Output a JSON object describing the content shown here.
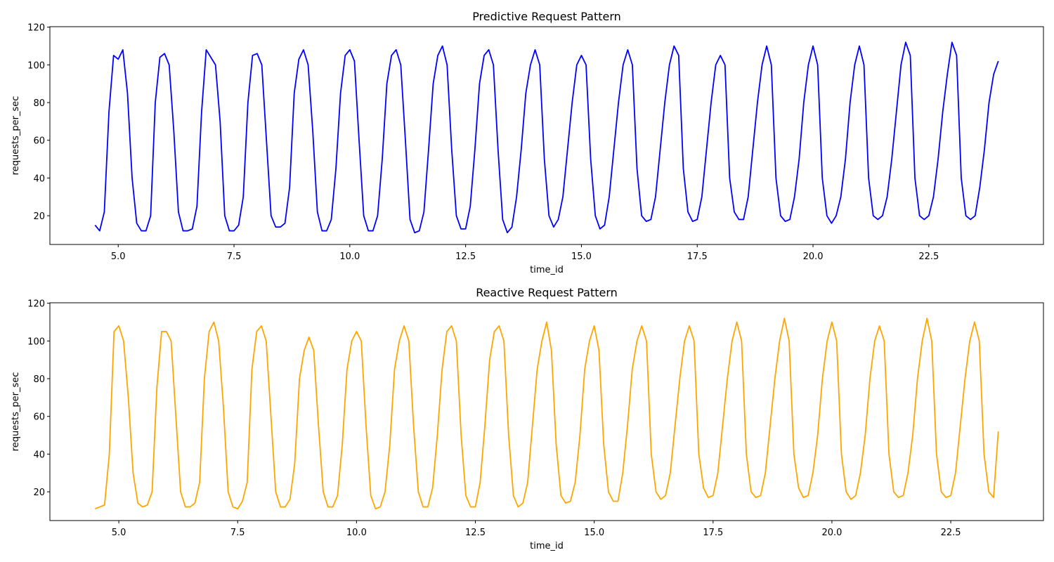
{
  "chart_data": [
    {
      "type": "line",
      "title": "Predictive Request Pattern",
      "xlabel": "time_id",
      "ylabel": "requests_per_sec",
      "color": "#0000ff",
      "xlim": [
        3.525,
        24.975
      ],
      "ylim": [
        4.75,
        120.25
      ],
      "xticks": [
        {
          "value": 5,
          "label": "5.0"
        },
        7.5,
        {
          "value": 10,
          "label": "10.0"
        },
        12.5,
        {
          "value": 15,
          "label": "15.0"
        },
        17.5,
        {
          "value": 20,
          "label": "20.0"
        },
        22.5
      ],
      "yticks": [
        20,
        40,
        60,
        80,
        100,
        120
      ],
      "x": [
        4.5,
        4.6,
        4.7,
        4.8,
        4.9,
        5.0,
        5.1,
        5.2,
        5.3,
        5.4,
        5.5,
        5.6,
        5.7,
        5.8,
        5.9,
        6.0,
        6.1,
        6.2,
        6.3,
        6.4,
        6.5,
        6.6,
        6.7,
        6.8,
        6.9,
        7.0,
        7.1,
        7.2,
        7.3,
        7.4,
        7.5,
        7.6,
        7.7,
        7.8,
        7.9,
        8.0,
        8.1,
        8.2,
        8.3,
        8.4,
        8.5,
        8.6,
        8.7,
        8.8,
        8.9,
        9.0,
        9.1,
        9.2,
        9.3,
        9.4,
        9.5,
        9.6,
        9.7,
        9.8,
        9.9,
        10.0,
        10.1,
        10.2,
        10.3,
        10.4,
        10.5,
        10.6,
        10.7,
        10.8,
        10.9,
        11.0,
        11.1,
        11.2,
        11.3,
        11.4,
        11.5,
        11.6,
        11.7,
        11.8,
        11.9,
        12.0,
        12.1,
        12.2,
        12.3,
        12.4,
        12.5,
        12.6,
        12.7,
        12.8,
        12.9,
        13.0,
        13.1,
        13.2,
        13.3,
        13.4,
        13.5,
        13.6,
        13.7,
        13.8,
        13.9,
        14.0,
        14.1,
        14.2,
        14.3,
        14.4,
        14.5,
        14.6,
        14.7,
        14.8,
        14.9,
        15.0,
        15.1,
        15.2,
        15.3,
        15.4,
        15.5,
        15.6,
        15.7,
        15.8,
        15.9,
        16.0,
        16.1,
        16.2,
        16.3,
        16.4,
        16.5,
        16.6,
        16.7,
        16.8,
        16.9,
        17.0,
        17.1,
        17.2,
        17.3,
        17.4,
        17.5,
        17.6,
        17.7,
        17.8,
        17.9,
        18.0,
        18.1,
        18.2,
        18.3,
        18.4,
        18.5,
        18.6,
        18.7,
        18.8,
        18.9,
        19.0,
        19.1,
        19.2,
        19.3,
        19.4,
        19.5,
        19.6,
        19.7,
        19.8,
        19.9,
        20.0,
        20.1,
        20.2,
        20.3,
        20.4,
        20.5,
        20.6,
        20.7,
        20.8,
        20.9,
        21.0,
        21.1,
        21.2,
        21.3,
        21.4,
        21.5,
        21.6,
        21.7,
        21.8,
        21.9,
        22.0,
        22.1,
        22.2,
        22.3,
        22.4,
        22.5,
        22.6,
        22.7,
        22.8,
        22.9,
        23.0,
        23.1,
        23.2,
        23.3,
        23.4,
        23.5,
        23.6,
        23.7,
        23.8,
        23.9,
        24.0
      ],
      "values": [
        15,
        12,
        22,
        75,
        105,
        103,
        108,
        85,
        40,
        16,
        12,
        12,
        20,
        80,
        104,
        106,
        100,
        65,
        22,
        12,
        12,
        13,
        25,
        75,
        108,
        104,
        100,
        70,
        20,
        12,
        12,
        15,
        30,
        80,
        105,
        106,
        100,
        60,
        20,
        14,
        14,
        16,
        35,
        85,
        103,
        108,
        100,
        65,
        22,
        12,
        12,
        18,
        45,
        85,
        105,
        108,
        102,
        60,
        20,
        12,
        12,
        20,
        50,
        90,
        105,
        108,
        100,
        60,
        18,
        11,
        12,
        22,
        55,
        90,
        105,
        110,
        100,
        55,
        20,
        13,
        13,
        25,
        55,
        90,
        105,
        108,
        100,
        55,
        18,
        11,
        14,
        30,
        55,
        85,
        100,
        108,
        100,
        50,
        20,
        14,
        18,
        30,
        55,
        80,
        100,
        105,
        100,
        50,
        20,
        13,
        15,
        30,
        55,
        80,
        100,
        108,
        100,
        45,
        20,
        17,
        18,
        30,
        55,
        80,
        100,
        110,
        105,
        45,
        22,
        17,
        18,
        30,
        55,
        80,
        100,
        105,
        100,
        40,
        22,
        18,
        18,
        30,
        55,
        80,
        100,
        110,
        100,
        40,
        20,
        17,
        18,
        30,
        50,
        80,
        100,
        110,
        100,
        40,
        20,
        16,
        20,
        30,
        50,
        80,
        100,
        110,
        100,
        40,
        20,
        18,
        20,
        30,
        50,
        75,
        100,
        112,
        105,
        40,
        20,
        18,
        20,
        30,
        50,
        75,
        95,
        112,
        105,
        40,
        20,
        18,
        20,
        35,
        55,
        80,
        95,
        102
      ]
    },
    {
      "type": "line",
      "title": "Reactive Request Pattern",
      "xlabel": "time_id",
      "ylabel": "requests_per_sec",
      "color": "#ffa500",
      "xlim": [
        3.55,
        24.45
      ],
      "ylim": [
        4.75,
        120.25
      ],
      "xticks": [
        {
          "value": 5,
          "label": "5.0"
        },
        7.5,
        {
          "value": 10,
          "label": "10.0"
        },
        12.5,
        {
          "value": 15,
          "label": "15.0"
        },
        17.5,
        {
          "value": 20,
          "label": "20.0"
        },
        22.5
      ],
      "yticks": [
        20,
        40,
        60,
        80,
        100,
        120
      ],
      "x": [
        4.5,
        4.6,
        4.7,
        4.8,
        4.9,
        5.0,
        5.1,
        5.2,
        5.3,
        5.4,
        5.5,
        5.6,
        5.7,
        5.8,
        5.9,
        6.0,
        6.1,
        6.2,
        6.3,
        6.4,
        6.5,
        6.6,
        6.7,
        6.8,
        6.9,
        7.0,
        7.1,
        7.2,
        7.3,
        7.4,
        7.5,
        7.6,
        7.7,
        7.8,
        7.9,
        8.0,
        8.1,
        8.2,
        8.3,
        8.4,
        8.5,
        8.6,
        8.7,
        8.8,
        8.9,
        9.0,
        9.1,
        9.2,
        9.3,
        9.4,
        9.5,
        9.6,
        9.7,
        9.8,
        9.9,
        10.0,
        10.1,
        10.2,
        10.3,
        10.4,
        10.5,
        10.6,
        10.7,
        10.8,
        10.9,
        11.0,
        11.1,
        11.2,
        11.3,
        11.4,
        11.5,
        11.6,
        11.7,
        11.8,
        11.9,
        12.0,
        12.1,
        12.2,
        12.3,
        12.4,
        12.5,
        12.6,
        12.7,
        12.8,
        12.9,
        13.0,
        13.1,
        13.2,
        13.3,
        13.4,
        13.5,
        13.6,
        13.7,
        13.8,
        13.9,
        14.0,
        14.1,
        14.2,
        14.3,
        14.4,
        14.5,
        14.6,
        14.7,
        14.8,
        14.9,
        15.0,
        15.1,
        15.2,
        15.3,
        15.4,
        15.5,
        15.6,
        15.7,
        15.8,
        15.9,
        16.0,
        16.1,
        16.2,
        16.3,
        16.4,
        16.5,
        16.6,
        16.7,
        16.8,
        16.9,
        17.0,
        17.1,
        17.2,
        17.3,
        17.4,
        17.5,
        17.6,
        17.7,
        17.8,
        17.9,
        18.0,
        18.1,
        18.2,
        18.3,
        18.4,
        18.5,
        18.6,
        18.7,
        18.8,
        18.9,
        19.0,
        19.1,
        19.2,
        19.3,
        19.4,
        19.5,
        19.6,
        19.7,
        19.8,
        19.9,
        20.0,
        20.1,
        20.2,
        20.3,
        20.4,
        20.5,
        20.6,
        20.7,
        20.8,
        20.9,
        21.0,
        21.1,
        21.2,
        21.3,
        21.4,
        21.5,
        21.6,
        21.7,
        21.8,
        21.9,
        22.0,
        22.1,
        22.2,
        22.3,
        22.4,
        22.5,
        22.6,
        22.7,
        22.8,
        22.9,
        23.0,
        23.1,
        23.2,
        23.3,
        23.4,
        23.5
      ],
      "values": [
        11,
        12,
        13,
        40,
        105,
        108,
        100,
        70,
        30,
        14,
        12,
        13,
        20,
        75,
        105,
        105,
        100,
        60,
        20,
        12,
        12,
        14,
        25,
        80,
        105,
        110,
        100,
        65,
        20,
        12,
        11,
        15,
        25,
        85,
        105,
        108,
        100,
        60,
        20,
        12,
        12,
        16,
        35,
        80,
        95,
        102,
        95,
        55,
        20,
        12,
        12,
        18,
        45,
        85,
        100,
        105,
        100,
        55,
        18,
        11,
        12,
        20,
        45,
        85,
        100,
        108,
        100,
        55,
        20,
        12,
        12,
        22,
        50,
        85,
        105,
        108,
        100,
        50,
        18,
        12,
        12,
        25,
        55,
        90,
        105,
        108,
        100,
        50,
        18,
        12,
        14,
        25,
        55,
        85,
        100,
        110,
        95,
        45,
        18,
        14,
        15,
        25,
        50,
        85,
        100,
        108,
        95,
        45,
        20,
        15,
        15,
        30,
        55,
        85,
        100,
        108,
        100,
        40,
        20,
        16,
        18,
        30,
        55,
        80,
        100,
        108,
        100,
        40,
        22,
        17,
        18,
        30,
        55,
        80,
        100,
        110,
        100,
        40,
        20,
        17,
        18,
        30,
        55,
        80,
        100,
        112,
        100,
        40,
        22,
        17,
        18,
        30,
        50,
        80,
        100,
        110,
        100,
        40,
        20,
        16,
        18,
        30,
        50,
        80,
        100,
        108,
        100,
        40,
        20,
        17,
        18,
        30,
        50,
        80,
        100,
        112,
        100,
        40,
        20,
        17,
        18,
        30,
        55,
        80,
        100,
        110,
        100,
        40,
        20,
        17,
        52
      ]
    }
  ]
}
